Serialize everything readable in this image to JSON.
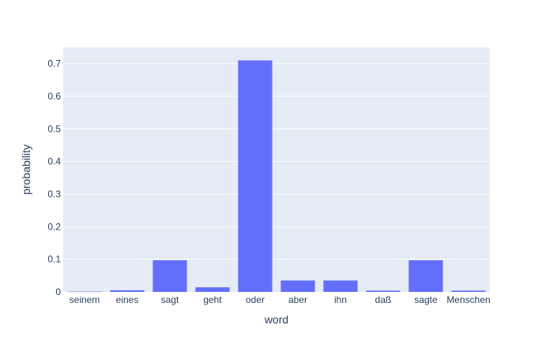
{
  "chart_data": {
    "type": "bar",
    "title": "",
    "xlabel": "word",
    "ylabel": "probability",
    "categories": [
      "seinem",
      "eines",
      "sagt",
      "geht",
      "oder",
      "aber",
      "ihn",
      "daß",
      "sagte",
      "Menschen"
    ],
    "values": [
      0.001,
      0.005,
      0.097,
      0.014,
      0.71,
      0.035,
      0.035,
      0.004,
      0.097,
      0.004
    ],
    "ylim": [
      0,
      0.75
    ],
    "yticks": [
      0,
      0.1,
      0.2,
      0.3,
      0.4,
      0.5,
      0.6,
      0.7
    ],
    "ytick_labels": [
      "0",
      "0.1",
      "0.2",
      "0.3",
      "0.4",
      "0.5",
      "0.6",
      "0.7"
    ],
    "grid": true,
    "legend": "none",
    "colors": {
      "bar": "#636efa",
      "plot_background": "#e5ecf6",
      "grid": "#ffffff",
      "text": "#2a3f5f"
    }
  }
}
